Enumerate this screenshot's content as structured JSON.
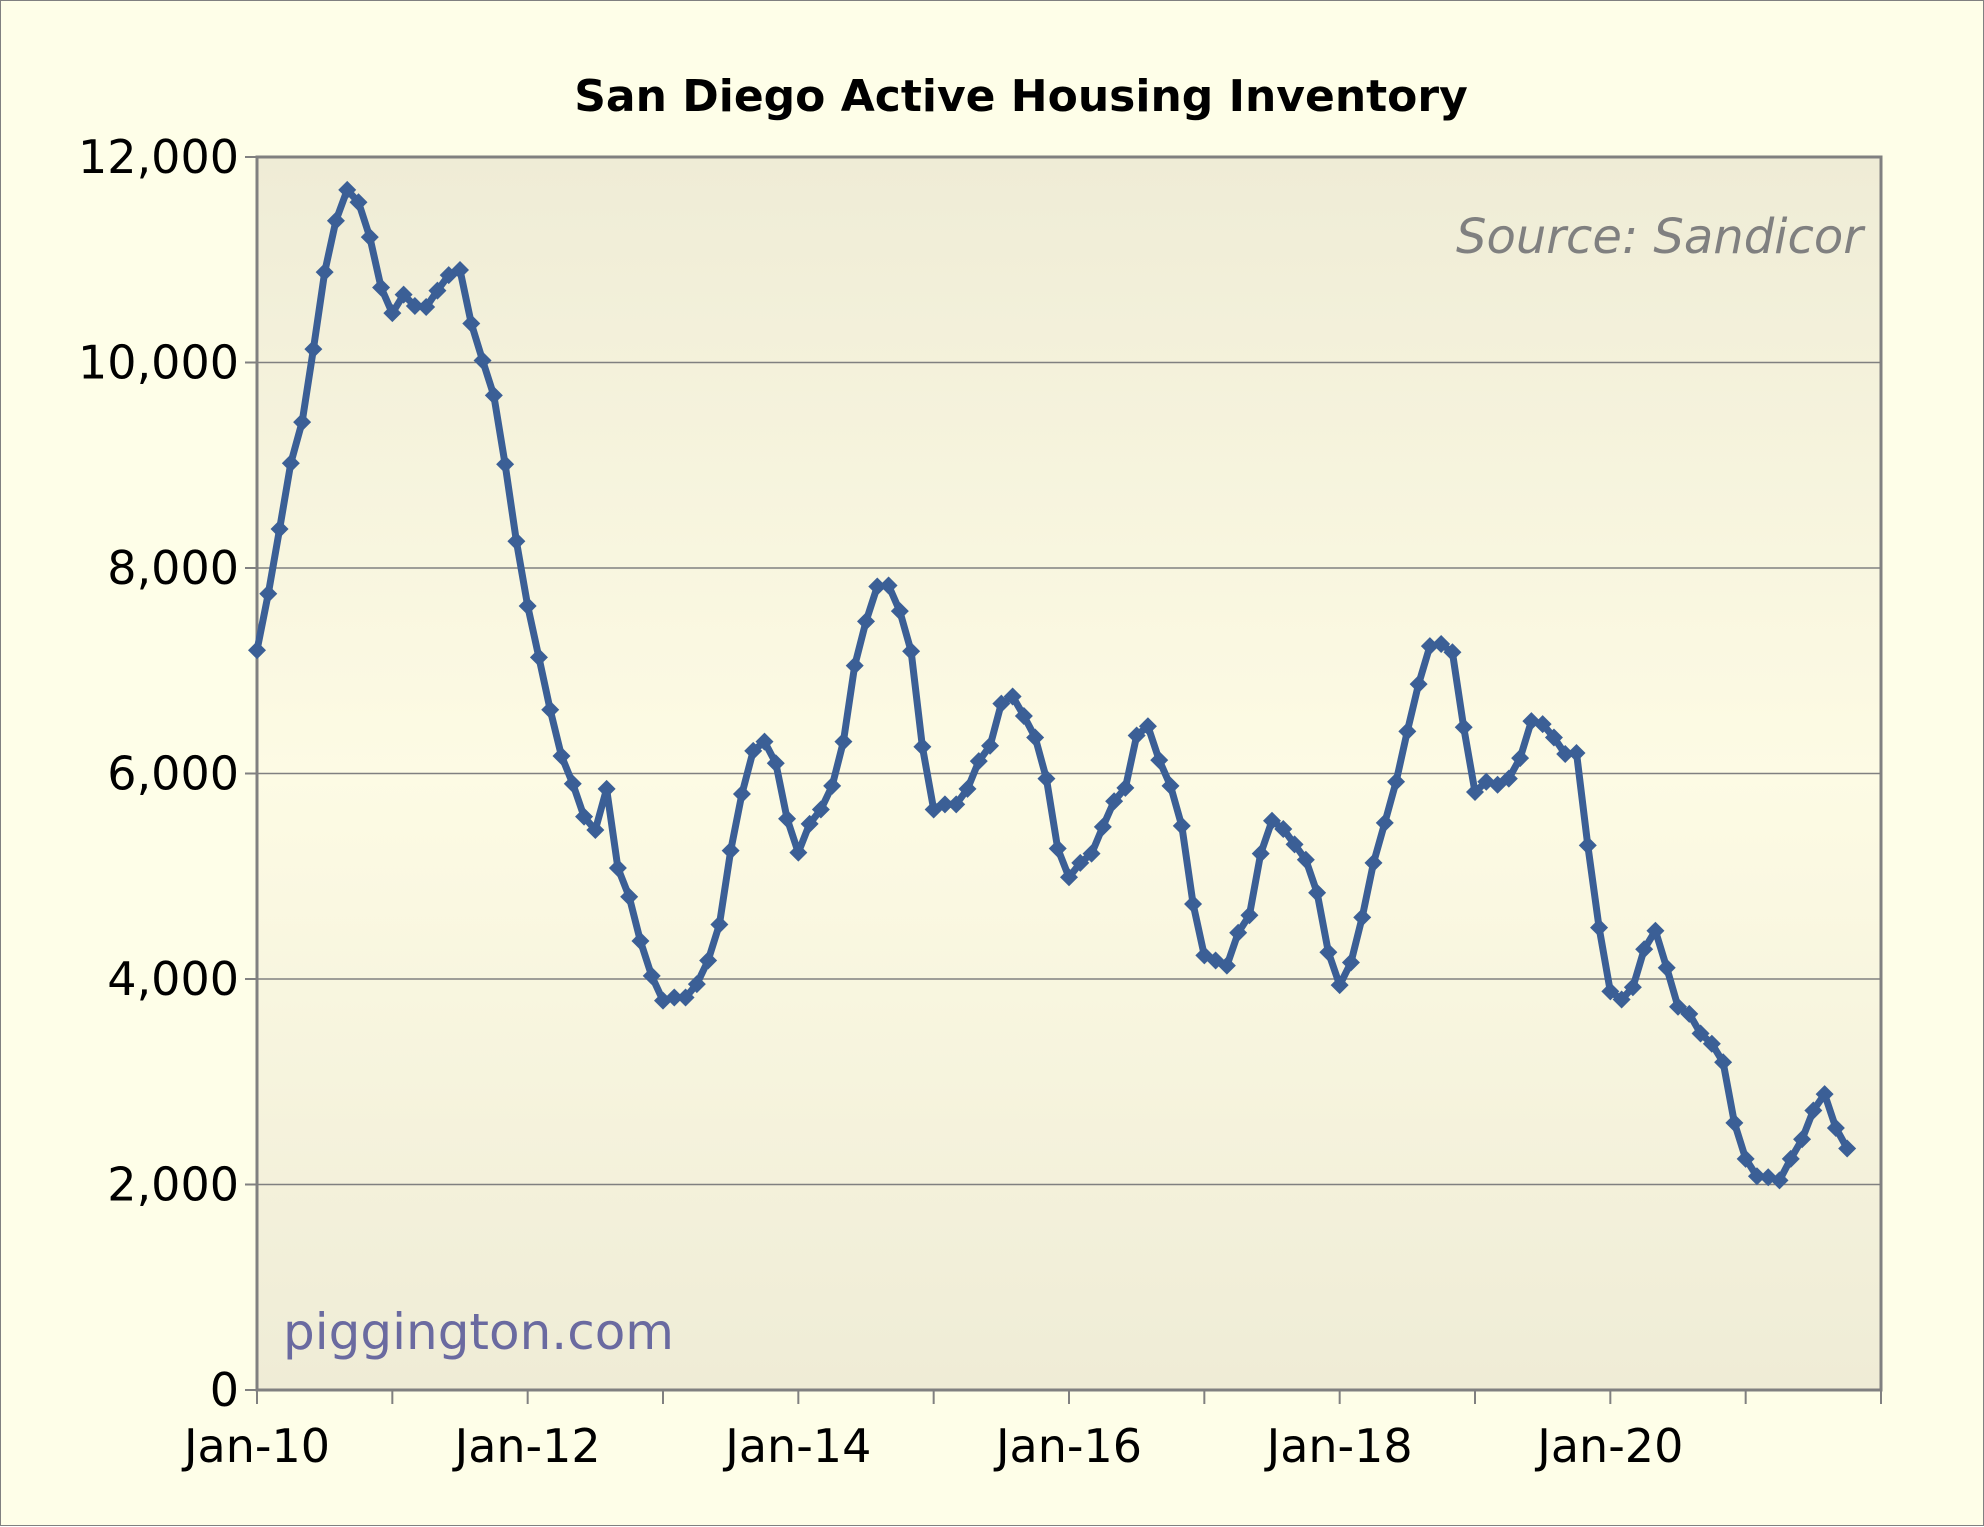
{
  "chart_data": {
    "type": "line",
    "title": "San Diego Active Housing Inventory",
    "source_note": "Source: Sandicor",
    "watermark": "piggington.com",
    "xlabel": "",
    "ylabel": "",
    "ylim": [
      0,
      12000
    ],
    "y_ticks": [
      0,
      2000,
      4000,
      6000,
      8000,
      10000,
      12000
    ],
    "y_tick_labels": [
      "0",
      "2,000",
      "4,000",
      "6,000",
      "8,000",
      "10,000",
      "12,000"
    ],
    "x_tick_labels": [
      "Jan-10",
      "Jan-12",
      "Jan-14",
      "Jan-16",
      "Jan-18",
      "Jan-20"
    ],
    "x_tick_label_every_months": 24,
    "x_minor_tick_every_months": 12,
    "start": "Jan-10",
    "months_span": 144,
    "grid": true,
    "colors": {
      "line": "#3b5f96",
      "grid": "#808080",
      "plot_bg_top": "#efecd6",
      "plot_bg_mid": "#fdfbe4"
    },
    "series": [
      {
        "name": "",
        "values": [
          7200,
          7750,
          8380,
          9020,
          9420,
          10130,
          10880,
          11380,
          11680,
          11560,
          11220,
          10730,
          10480,
          10660,
          10550,
          10540,
          10700,
          10850,
          10900,
          10380,
          10020,
          9680,
          9010,
          8260,
          7630,
          7130,
          6620,
          6170,
          5900,
          5580,
          5450,
          5850,
          5080,
          4800,
          4370,
          4030,
          3790,
          3820,
          3820,
          3950,
          4180,
          4530,
          5250,
          5800,
          6220,
          6310,
          6100,
          5560,
          5230,
          5510,
          5650,
          5880,
          6310,
          7050,
          7480,
          7820,
          7830,
          7580,
          7190,
          6260,
          5650,
          5700,
          5700,
          5850,
          6120,
          6270,
          6680,
          6750,
          6560,
          6350,
          5950,
          5270,
          4990,
          5130,
          5220,
          5480,
          5730,
          5860,
          6370,
          6460,
          6130,
          5880,
          5490,
          4730,
          4230,
          4180,
          4130,
          4450,
          4620,
          5220,
          5540,
          5460,
          5310,
          5160,
          4840,
          4260,
          3940,
          4160,
          4600,
          5130,
          5520,
          5920,
          6410,
          6870,
          7240,
          7260,
          7180,
          6450,
          5820,
          5920,
          5890,
          5950,
          6150,
          6510,
          6480,
          6350,
          6190,
          6200,
          5300,
          4500,
          3880,
          3800,
          3920,
          4290,
          4470,
          4110,
          3730,
          3660,
          3470,
          3370,
          3190,
          2600,
          2250,
          2080,
          2070,
          2040,
          2250,
          2440,
          2720,
          2880,
          2550,
          2350
        ]
      }
    ]
  }
}
